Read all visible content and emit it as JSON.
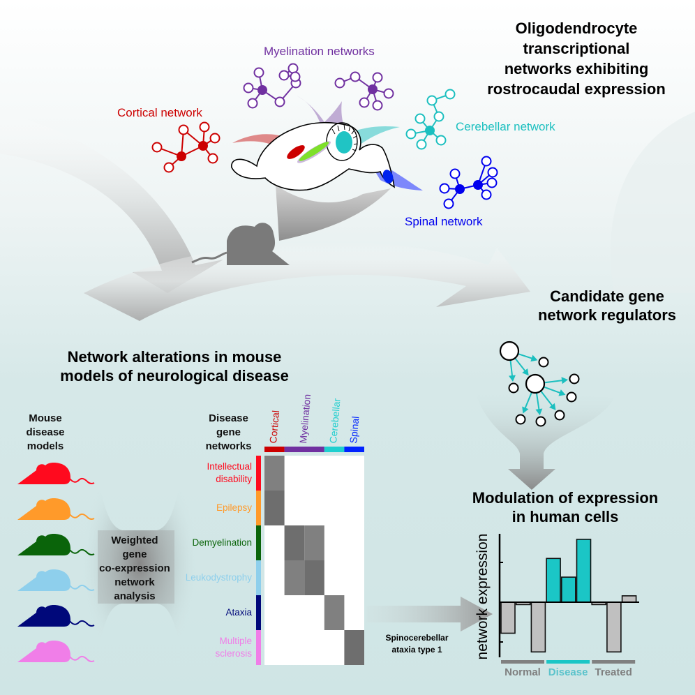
{
  "top": {
    "title_lines": [
      "Oligodendrocyte",
      "transcriptional",
      "networks exhibiting",
      "rostrocaudal expression"
    ],
    "networks": {
      "myelination": {
        "label": "Myelination networks",
        "color": "#7030a0"
      },
      "cortical": {
        "label": "Cortical network",
        "color": "#cc0000"
      },
      "cerebellar": {
        "label": "Cerebellar network",
        "color": "#1bbfbf"
      },
      "spinal": {
        "label": "Spinal network",
        "color": "#0000ee"
      }
    }
  },
  "regulators": {
    "title_lines": [
      "Candidate gene",
      "network regulators"
    ],
    "arrow_color": "#1bbfbf"
  },
  "disease": {
    "title_lines": [
      "Network alterations in mouse",
      "models of neurological disease"
    ],
    "mouse_models_label": [
      "Mouse",
      "disease",
      "models"
    ],
    "mouse_colors": [
      "#ff0a1e",
      "#ff9a2a",
      "#0a640a",
      "#8ecfec",
      "#00087a",
      "#f07ee8"
    ],
    "wgcna_label": [
      "Weighted",
      "gene",
      "co-expression",
      "network",
      "analysis"
    ],
    "networks_label": [
      "Disease",
      "gene",
      "networks"
    ],
    "columns": [
      {
        "label": "Cortical",
        "color": "#cc0000",
        "span": 1
      },
      {
        "label": "Myelination",
        "color": "#7030a0",
        "span": 2
      },
      {
        "label": "Cerebellar",
        "color": "#1fcfcf",
        "span": 1
      },
      {
        "label": "Spinal",
        "color": "#0022ff",
        "span": 1
      }
    ],
    "rows": [
      {
        "label": "Intellectual disability",
        "color": "#ff0a1e"
      },
      {
        "label": "Epilepsy",
        "color": "#ff9a2a"
      },
      {
        "label": "Demyelination",
        "color": "#0a640a"
      },
      {
        "label": "Leukodystrophy",
        "color": "#8ecfec"
      },
      {
        "label": "Ataxia",
        "color": "#00087a"
      },
      {
        "label": "Multiple sclerosis",
        "color": "#f07ee8"
      }
    ],
    "matrix": [
      [
        1,
        0,
        0,
        0,
        0
      ],
      [
        2,
        0,
        0,
        0,
        0
      ],
      [
        0,
        2,
        1,
        0,
        0
      ],
      [
        0,
        1,
        2,
        0,
        0
      ],
      [
        0,
        0,
        0,
        1,
        0
      ],
      [
        0,
        0,
        0,
        0,
        2
      ]
    ],
    "arrow_label": [
      "Spinocerebellar",
      "ataxia type 1"
    ]
  },
  "modulation": {
    "title_lines": [
      "Modulation of expression",
      "in human cells"
    ]
  },
  "chart_data": {
    "type": "bar",
    "ylabel": "network expression",
    "groups": [
      {
        "label": "Normal",
        "color": "#c0c0c0",
        "bar_color": "#808080",
        "values": [
          -0.78,
          -0.06,
          -1.25
        ]
      },
      {
        "label": "Disease",
        "color": "#1bc6c6",
        "bar_color": "#1bc6c6",
        "values": [
          1.1,
          0.63,
          1.58
        ]
      },
      {
        "label": "Treated",
        "color": "#c0c0c0",
        "bar_color": "#808080",
        "values": [
          -0.06,
          -1.25,
          0.16
        ]
      }
    ],
    "ylim": [
      -1.4,
      1.7
    ],
    "yticks": [
      -1,
      0,
      1
    ]
  }
}
